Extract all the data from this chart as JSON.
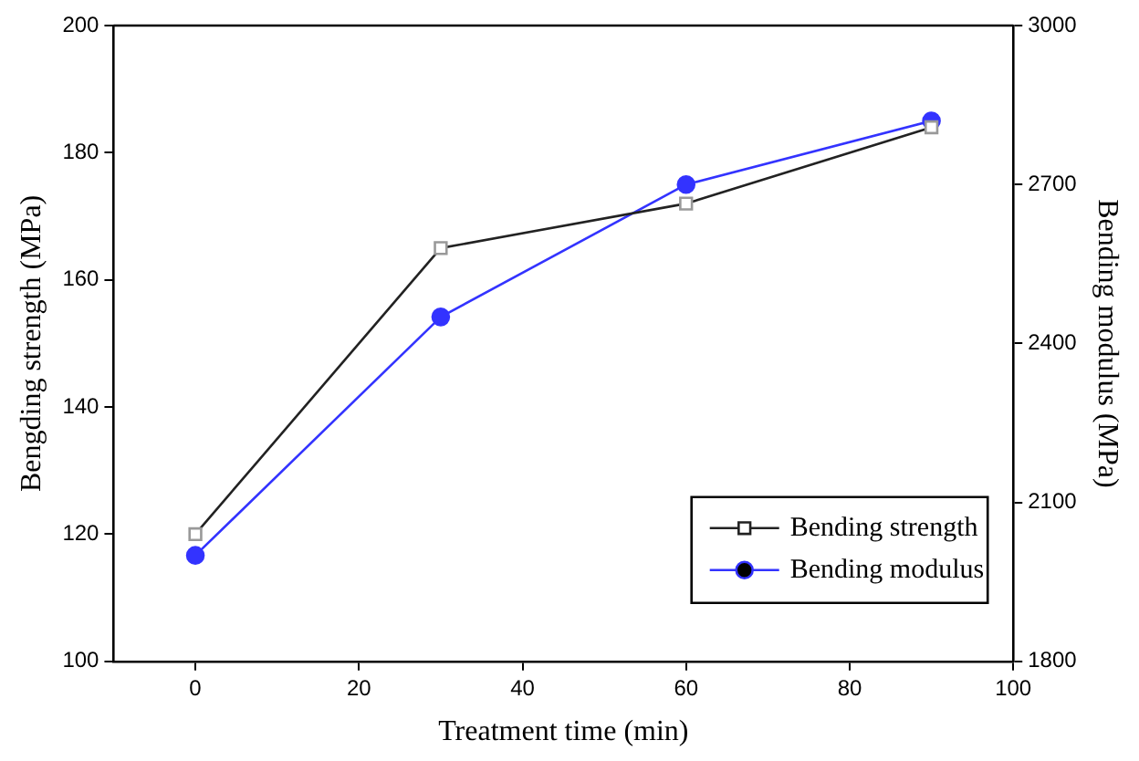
{
  "chart_data": {
    "type": "line",
    "xlabel": "Treatment time (min)",
    "ylabel": "Bengding strength (MPa)",
    "y2label": "Bending modulus (MPa)",
    "x": [
      0,
      30,
      60,
      90
    ],
    "series": [
      {
        "name": "Bending strength",
        "color": "#222222",
        "marker": "square",
        "values": [
          120,
          165,
          172,
          184
        ]
      },
      {
        "name": "Bending modulus",
        "color": "#3333ff",
        "marker": "circle",
        "axis": "y2",
        "values": [
          2000,
          2450,
          2700,
          2820
        ]
      }
    ],
    "xlim": [
      -10,
      100
    ],
    "xticks": [
      0,
      20,
      40,
      60,
      80,
      100
    ],
    "ylim": [
      100,
      200
    ],
    "yticks": [
      100,
      120,
      140,
      160,
      180,
      200
    ],
    "y2lim": [
      1800,
      3000
    ],
    "y2ticks": [
      1800,
      2100,
      2400,
      2700,
      3000
    ],
    "grid": false,
    "legend": "bottom right",
    "line_style": "solid"
  }
}
